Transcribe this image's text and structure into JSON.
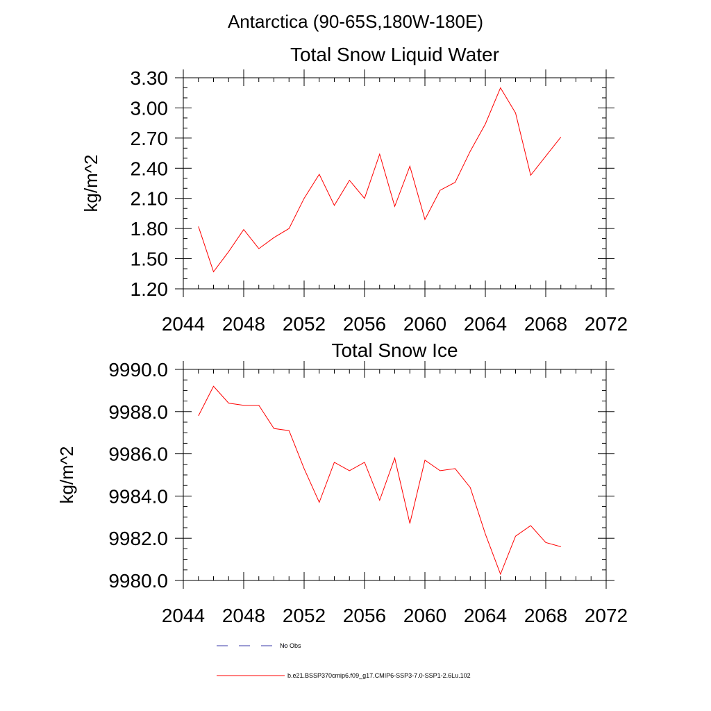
{
  "page": {
    "supertitle": "Antarctica (90-65S,180W-180E)"
  },
  "legend": {
    "items": [
      {
        "label": "No Obs",
        "color": "#3a3aa8",
        "style": "dashed"
      },
      {
        "label": "b.e21.BSSP370cmip6.f09_g17.CMIP6-SSP3-7.0-SSP1-2.6Lu.102",
        "color": "#ff0000",
        "style": "solid"
      }
    ]
  },
  "chart_data": [
    {
      "type": "line",
      "title": "Total Snow Liquid Water",
      "ylabel": "kg/m^2",
      "xlabel": "",
      "xlim": [
        2044,
        2072
      ],
      "ylim": [
        1.2,
        3.3
      ],
      "xticks": [
        2044,
        2048,
        2052,
        2056,
        2060,
        2064,
        2068,
        2072
      ],
      "xtick_labels": [
        "2044",
        "2048",
        "2052",
        "2056",
        "2060",
        "2064",
        "2068",
        "2072"
      ],
      "yticks": [
        1.2,
        1.5,
        1.8,
        2.1,
        2.4,
        2.7,
        3.0,
        3.3
      ],
      "ytick_labels": [
        "1.20",
        "1.50",
        "1.80",
        "2.10",
        "2.40",
        "2.70",
        "3.00",
        "3.30"
      ],
      "grid": false,
      "series": [
        {
          "color": "#ff0000",
          "x": [
            2045,
            2046,
            2047,
            2048,
            2049,
            2050,
            2051,
            2052,
            2053,
            2054,
            2055,
            2056,
            2057,
            2058,
            2059,
            2060,
            2061,
            2062,
            2063,
            2064,
            2065,
            2066,
            2067,
            2068,
            2069
          ],
          "values": [
            1.82,
            1.37,
            1.57,
            1.79,
            1.6,
            1.71,
            1.8,
            2.1,
            2.34,
            2.03,
            2.28,
            2.1,
            2.54,
            2.02,
            2.42,
            1.89,
            2.18,
            2.26,
            2.57,
            2.84,
            3.2,
            2.95,
            2.33,
            2.52,
            2.71
          ]
        }
      ]
    },
    {
      "type": "line",
      "title": "Total Snow Ice",
      "ylabel": "kg/m^2",
      "xlabel": "",
      "xlim": [
        2044,
        2072
      ],
      "ylim": [
        9980.0,
        9990.0
      ],
      "xticks": [
        2044,
        2048,
        2052,
        2056,
        2060,
        2064,
        2068,
        2072
      ],
      "xtick_labels": [
        "2044",
        "2048",
        "2052",
        "2056",
        "2060",
        "2064",
        "2068",
        "2072"
      ],
      "yticks": [
        9980,
        9982,
        9984,
        9986,
        9988,
        9990
      ],
      "ytick_labels": [
        "9980.0",
        "9982.0",
        "9984.0",
        "9986.0",
        "9988.0",
        "9990.0"
      ],
      "grid": false,
      "series": [
        {
          "color": "#ff0000",
          "x": [
            2045,
            2046,
            2047,
            2048,
            2049,
            2050,
            2051,
            2052,
            2053,
            2054,
            2055,
            2056,
            2057,
            2058,
            2059,
            2060,
            2061,
            2062,
            2063,
            2064,
            2065,
            2066,
            2067,
            2068,
            2069
          ],
          "values": [
            9987.8,
            9989.2,
            9988.4,
            9988.3,
            9988.3,
            9987.2,
            9987.1,
            9985.3,
            9983.7,
            9985.6,
            9985.2,
            9985.6,
            9983.8,
            9985.8,
            9982.7,
            9985.7,
            9985.2,
            9985.3,
            9984.4,
            9982.2,
            9980.3,
            9982.1,
            9982.6,
            9981.8,
            9981.6
          ]
        }
      ]
    }
  ]
}
